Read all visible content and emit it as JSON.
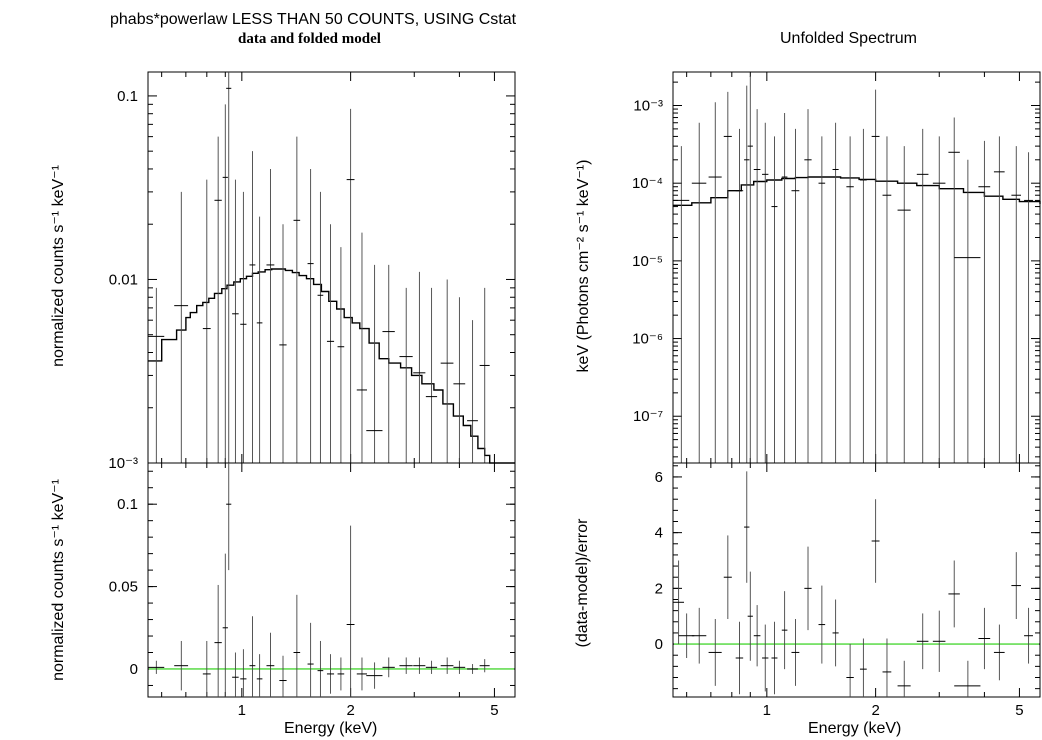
{
  "titles": {
    "left_main": "phabs*powerlaw LESS THAN 50 COUNTS, USING Cstat",
    "left_sub": "data and folded model",
    "right_main": "Unfolded Spectrum"
  },
  "labels": {
    "xlabel": "Energy (keV)",
    "left_top_ylabel": "normalized counts s⁻¹ keV⁻¹",
    "left_bottom_ylabel": "normalized counts s⁻¹ keV⁻¹",
    "right_top_ylabel": "keV (Photons cm⁻² s⁻¹ keV⁻¹)",
    "right_bottom_ylabel": "(data-model)/error"
  },
  "colors": {
    "data": "#000000",
    "model": "#000000",
    "zero_line": "#66dd55"
  },
  "chart_data": [
    {
      "id": "folded",
      "type": "line",
      "title": "data and folded model",
      "xlabel": "Energy (keV)",
      "ylabel": "normalized counts s⁻¹ keV⁻¹",
      "xscale": "log",
      "yscale": "log",
      "xlim": [
        0.55,
        5.7
      ],
      "ylim": [
        0.001,
        0.135
      ],
      "xticks": [
        1,
        2,
        5
      ],
      "xtick_labels": [
        "1",
        "2",
        "5"
      ],
      "yticks": [
        0.001,
        0.01,
        0.1
      ],
      "ytick_labels": [
        "10⁻³",
        "0.01",
        "0.1"
      ],
      "model": {
        "name": "folded model",
        "x": [
          0.55,
          0.6,
          0.66,
          0.7,
          0.72,
          0.75,
          0.78,
          0.81,
          0.84,
          0.88,
          0.91,
          0.95,
          0.99,
          1.03,
          1.07,
          1.11,
          1.16,
          1.21,
          1.26,
          1.32,
          1.38,
          1.44,
          1.51,
          1.58,
          1.66,
          1.74,
          1.83,
          1.92,
          2.02,
          2.12,
          2.25,
          2.4,
          2.55,
          2.75,
          2.95,
          3.15,
          3.4,
          3.6,
          3.85,
          4.1,
          4.3,
          4.5,
          4.7,
          4.85
        ],
        "y": [
          0.0036,
          0.0047,
          0.0053,
          0.0062,
          0.0066,
          0.0072,
          0.0075,
          0.0079,
          0.0084,
          0.0089,
          0.0093,
          0.0097,
          0.0101,
          0.0104,
          0.0108,
          0.011,
          0.0113,
          0.0114,
          0.0114,
          0.0112,
          0.0109,
          0.0105,
          0.0101,
          0.0094,
          0.0086,
          0.0076,
          0.0069,
          0.0062,
          0.0058,
          0.0054,
          0.0045,
          0.0037,
          0.0035,
          0.0033,
          0.003,
          0.0027,
          0.0025,
          0.0021,
          0.0018,
          0.0016,
          0.0014,
          0.0012,
          0.0011,
          0.001
        ]
      },
      "data": {
        "name": "data",
        "x": [
          0.58,
          0.68,
          0.8,
          0.86,
          0.9,
          0.92,
          0.96,
          1.01,
          1.07,
          1.12,
          1.2,
          1.3,
          1.42,
          1.55,
          1.65,
          1.76,
          1.88,
          2.0,
          2.15,
          2.33,
          2.55,
          2.85,
          3.1,
          3.35,
          3.7,
          4.0,
          4.35,
          4.7
        ],
        "y": [
          0.0049,
          0.0072,
          0.0054,
          0.027,
          0.036,
          0.11,
          0.0065,
          0.0057,
          0.012,
          0.0058,
          0.012,
          0.0044,
          0.021,
          0.0122,
          0.0082,
          0.0046,
          0.0043,
          0.035,
          0.0025,
          0.0015,
          0.0052,
          0.0038,
          0.0031,
          0.0023,
          0.0035,
          0.0027,
          0.0017,
          0.0034
        ],
        "yerr_low": [
          0.001,
          0.001,
          0.001,
          0.001,
          0.001,
          0.001,
          0.001,
          0.001,
          0.001,
          0.001,
          0.001,
          0.001,
          0.001,
          0.001,
          0.001,
          0.001,
          0.001,
          0.001,
          0.001,
          0.001,
          0.001,
          0.001,
          0.001,
          0.001,
          0.001,
          0.001,
          0.001,
          0.001
        ],
        "yerr_high": [
          0.009,
          0.03,
          0.035,
          0.06,
          0.09,
          0.135,
          0.035,
          0.03,
          0.05,
          0.022,
          0.04,
          0.02,
          0.06,
          0.04,
          0.03,
          0.02,
          0.015,
          0.085,
          0.018,
          0.012,
          0.012,
          0.009,
          0.011,
          0.009,
          0.01,
          0.008,
          0.006,
          0.009
        ],
        "xerr": [
          0.03,
          0.03,
          0.02,
          0.02,
          0.015,
          0.015,
          0.02,
          0.02,
          0.02,
          0.02,
          0.03,
          0.03,
          0.03,
          0.03,
          0.03,
          0.04,
          0.04,
          0.05,
          0.07,
          0.12,
          0.1,
          0.12,
          0.12,
          0.12,
          0.15,
          0.15,
          0.15,
          0.15
        ]
      }
    },
    {
      "id": "unfolded",
      "type": "line",
      "title": "Unfolded Spectrum",
      "xlabel": "Energy (keV)",
      "ylabel": "keV (Photons cm⁻² s⁻¹ keV⁻¹)",
      "xscale": "log",
      "yscale": "log",
      "xlim": [
        0.55,
        5.7
      ],
      "ylim": [
        2.5e-08,
        0.0027
      ],
      "xticks": [
        1,
        2,
        5
      ],
      "xtick_labels": [
        "1",
        "2",
        "5"
      ],
      "yticks": [
        1e-07,
        1e-06,
        1e-05,
        0.0001,
        0.001
      ],
      "ytick_labels": [
        "10⁻⁷",
        "10⁻⁶",
        "10⁻⁵",
        "10⁻⁴",
        "10⁻³"
      ],
      "model": {
        "name": "model",
        "x": [
          0.55,
          0.62,
          0.7,
          0.78,
          0.85,
          0.92,
          1.0,
          1.1,
          1.2,
          1.3,
          1.45,
          1.6,
          1.8,
          2.0,
          2.3,
          2.6,
          3.0,
          3.5,
          4.0,
          4.5,
          5.0,
          5.7
        ],
        "y": [
          5.2e-05,
          5.6e-05,
          6.5e-05,
          8e-05,
          9.5e-05,
          0.000105,
          0.00011,
          0.000115,
          0.000118,
          0.00012,
          0.00012,
          0.000117,
          0.000112,
          0.000106,
          0.0001,
          9.3e-05,
          8.5e-05,
          7.6e-05,
          6.8e-05,
          6.2e-05,
          5.8e-05,
          5.4e-05
        ]
      },
      "data": {
        "name": "data",
        "x": [
          0.58,
          0.65,
          0.72,
          0.78,
          0.84,
          0.88,
          0.9,
          0.94,
          0.99,
          1.05,
          1.12,
          1.2,
          1.3,
          1.42,
          1.55,
          1.7,
          1.85,
          2.0,
          2.15,
          2.4,
          2.7,
          3.0,
          3.3,
          3.6,
          4.0,
          4.4,
          4.9,
          5.3
        ],
        "y": [
          6e-05,
          0.0001,
          0.00012,
          0.0004,
          8e-05,
          0.0002,
          0.0003,
          0.00015,
          0.00013,
          5e-05,
          0.00012,
          8e-05,
          0.0002,
          0.0001,
          0.00015,
          9e-05,
          0.00011,
          0.0004,
          7e-05,
          4.5e-05,
          0.00013,
          0.0001,
          0.00025,
          1.1e-05,
          9e-05,
          0.00014,
          7e-05,
          6e-05
        ],
        "yerr_low": [
          2.5e-08,
          2.5e-08,
          2.5e-08,
          2.5e-08,
          2.5e-08,
          2.5e-08,
          2.5e-08,
          2.5e-08,
          2.5e-08,
          2.5e-08,
          2.5e-08,
          2.5e-08,
          2.5e-08,
          2.5e-08,
          2.5e-08,
          2.5e-08,
          2.5e-08,
          2.5e-08,
          2.5e-08,
          2.5e-08,
          2.5e-08,
          2.5e-08,
          2.5e-08,
          2.5e-08,
          2.5e-08,
          2.5e-08,
          2.5e-08,
          2.5e-08
        ],
        "yerr_high": [
          0.0003,
          0.0006,
          0.0011,
          0.0015,
          0.0005,
          0.0018,
          0.0024,
          0.0009,
          0.0006,
          0.0004,
          0.0008,
          0.0005,
          0.0009,
          0.0004,
          0.0006,
          0.0004,
          0.0005,
          0.0016,
          0.0004,
          0.0003,
          0.0005,
          0.0004,
          0.0007,
          0.0002,
          0.00035,
          0.0004,
          0.0003,
          0.00025
        ],
        "xerr": [
          0.03,
          0.03,
          0.03,
          0.02,
          0.02,
          0.015,
          0.015,
          0.02,
          0.02,
          0.02,
          0.02,
          0.03,
          0.03,
          0.03,
          0.03,
          0.04,
          0.04,
          0.05,
          0.06,
          0.1,
          0.1,
          0.12,
          0.12,
          0.3,
          0.15,
          0.15,
          0.15,
          0.15
        ]
      }
    },
    {
      "id": "left_residual",
      "type": "scatter",
      "xlabel": "Energy (keV)",
      "ylabel": "normalized counts s⁻¹ keV⁻¹",
      "xscale": "log",
      "yscale": "linear",
      "xlim": [
        0.55,
        5.7
      ],
      "ylim": [
        -0.017,
        0.125
      ],
      "xticks": [
        1,
        2,
        5
      ],
      "xtick_labels": [
        "1",
        "2",
        "5"
      ],
      "yticks": [
        0,
        0.05,
        0.1
      ],
      "ytick_labels": [
        "0",
        "0.05",
        "0.1"
      ],
      "zero_line": 0,
      "data": {
        "name": "residuals",
        "x": [
          0.58,
          0.68,
          0.8,
          0.86,
          0.9,
          0.92,
          0.96,
          1.01,
          1.07,
          1.12,
          1.2,
          1.3,
          1.42,
          1.55,
          1.65,
          1.76,
          1.88,
          2.0,
          2.15,
          2.33,
          2.55,
          2.85,
          3.1,
          3.35,
          3.7,
          4.0,
          4.35,
          4.7
        ],
        "y": [
          0.001,
          0.002,
          -0.003,
          0.016,
          0.025,
          0.1,
          -0.005,
          -0.006,
          0.002,
          -0.006,
          0.002,
          -0.007,
          0.01,
          0.003,
          -0.001,
          -0.003,
          -0.003,
          0.027,
          -0.003,
          -0.004,
          0.001,
          0.002,
          0.002,
          0.001,
          0.002,
          0.001,
          0.0,
          0.002
        ],
        "yerr": [
          0.004,
          0.015,
          0.02,
          0.035,
          0.045,
          0.04,
          0.015,
          0.018,
          0.03,
          0.015,
          0.02,
          0.015,
          0.035,
          0.025,
          0.018,
          0.012,
          0.01,
          0.06,
          0.01,
          0.008,
          0.006,
          0.005,
          0.005,
          0.004,
          0.005,
          0.004,
          0.003,
          0.004
        ],
        "xerr": [
          0.03,
          0.03,
          0.02,
          0.02,
          0.015,
          0.015,
          0.02,
          0.02,
          0.02,
          0.02,
          0.03,
          0.03,
          0.03,
          0.03,
          0.03,
          0.04,
          0.04,
          0.05,
          0.07,
          0.12,
          0.1,
          0.12,
          0.12,
          0.12,
          0.15,
          0.15,
          0.15,
          0.15
        ]
      }
    },
    {
      "id": "right_residual",
      "type": "scatter",
      "xlabel": "Energy (keV)",
      "ylabel": "(data-model)/error",
      "xscale": "log",
      "yscale": "linear",
      "xlim": [
        0.55,
        5.7
      ],
      "ylim": [
        -1.9,
        6.5
      ],
      "xticks": [
        1,
        2,
        5
      ],
      "xtick_labels": [
        "1",
        "2",
        "5"
      ],
      "yticks": [
        0,
        2,
        4,
        6
      ],
      "ytick_labels": [
        "0",
        "2",
        "4",
        "6"
      ],
      "zero_line": 0,
      "data": {
        "name": "residuals",
        "x": [
          0.57,
          0.6,
          0.65,
          0.72,
          0.78,
          0.84,
          0.88,
          0.9,
          0.94,
          0.99,
          1.05,
          1.12,
          1.2,
          1.3,
          1.42,
          1.55,
          1.7,
          1.85,
          2.0,
          2.15,
          2.4,
          2.7,
          3.0,
          3.3,
          3.6,
          4.0,
          4.4,
          4.9,
          5.3
        ],
        "y": [
          1.5,
          0.3,
          0.3,
          -0.3,
          2.4,
          -0.5,
          4.2,
          1.0,
          0.3,
          -0.5,
          -0.5,
          0.5,
          -0.3,
          2.0,
          0.7,
          0.4,
          -1.2,
          -0.9,
          3.7,
          -1.0,
          -1.5,
          0.1,
          0.1,
          1.8,
          -1.5,
          0.2,
          -0.3,
          2.1,
          0.3
        ],
        "yerr": [
          1.5,
          0.8,
          1.0,
          1.2,
          1.5,
          1.3,
          2.0,
          1.6,
          1.1,
          1.2,
          1.3,
          1.4,
          1.2,
          1.5,
          1.4,
          1.2,
          1.2,
          1.1,
          1.5,
          1.2,
          0.9,
          1.0,
          1.1,
          1.2,
          0.9,
          1.1,
          1.0,
          1.2,
          1.0
        ],
        "xerr": [
          0.02,
          0.03,
          0.03,
          0.03,
          0.02,
          0.02,
          0.015,
          0.015,
          0.02,
          0.02,
          0.02,
          0.02,
          0.03,
          0.03,
          0.03,
          0.03,
          0.04,
          0.04,
          0.05,
          0.06,
          0.1,
          0.1,
          0.12,
          0.12,
          0.3,
          0.15,
          0.15,
          0.15,
          0.15
        ]
      }
    }
  ]
}
